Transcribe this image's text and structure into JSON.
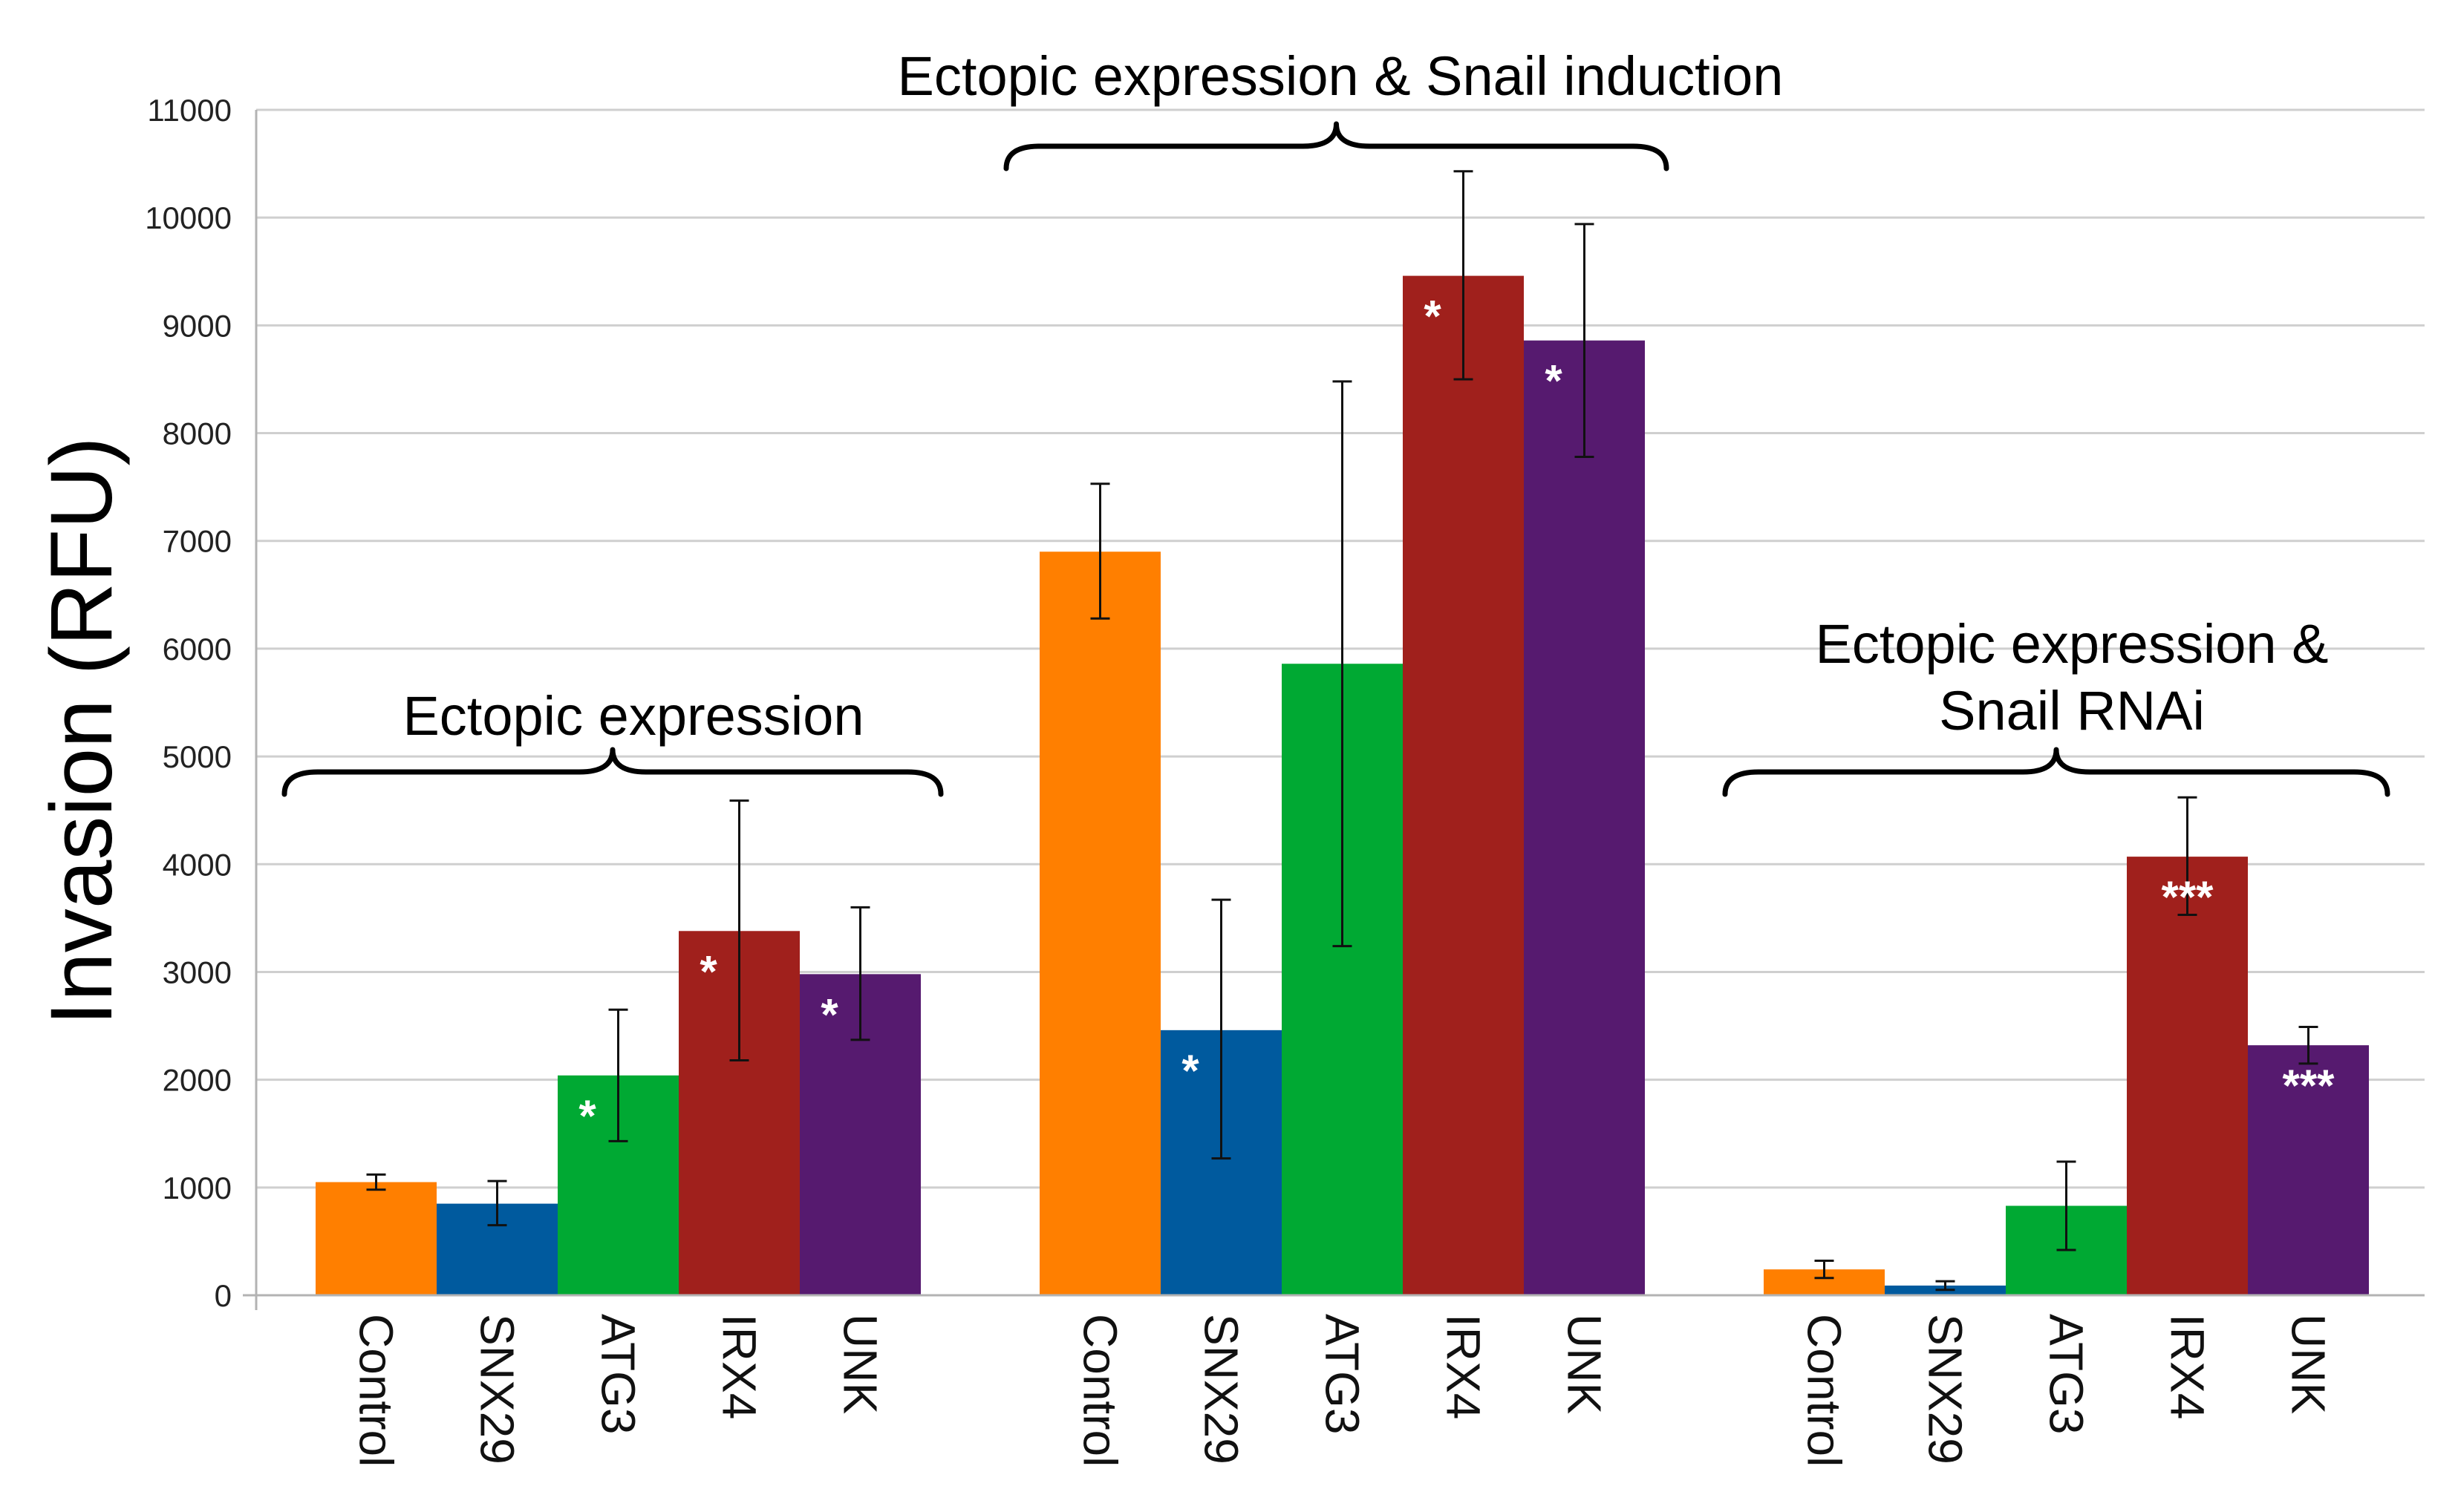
{
  "chart_data": {
    "type": "bar",
    "ylabel": "Invasion (RFU)",
    "ylim": [
      0,
      11000
    ],
    "yticks": [
      0,
      1000,
      2000,
      3000,
      4000,
      5000,
      6000,
      7000,
      8000,
      9000,
      10000,
      11000
    ],
    "grid": true,
    "categories": [
      "Control",
      "SNX29",
      "ATG3",
      "IRX4",
      "UNK"
    ],
    "colors": {
      "Control": "#ff7f00",
      "SNX29": "#005a9e",
      "ATG3": "#00a933",
      "IRX4": "#a0201c",
      "UNK": "#561a6f"
    },
    "groups": [
      {
        "name": "Ectopic expression",
        "bars": [
          {
            "category": "Control",
            "value": 1050,
            "error": [
              980,
              1120
            ],
            "sig": ""
          },
          {
            "category": "SNX29",
            "value": 850,
            "error": [
              650,
              1060
            ],
            "sig": ""
          },
          {
            "category": "ATG3",
            "value": 2040,
            "error": [
              1430,
              2650
            ],
            "sig": "*"
          },
          {
            "category": "IRX4",
            "value": 3380,
            "error": [
              2180,
              4590
            ],
            "sig": "*"
          },
          {
            "category": "UNK",
            "value": 2980,
            "error": [
              2370,
              3600
            ],
            "sig": "*"
          }
        ]
      },
      {
        "name": "Ectopic expression & Snail induction",
        "bars": [
          {
            "category": "Control",
            "value": 6900,
            "error": [
              6280,
              7530
            ],
            "sig": ""
          },
          {
            "category": "SNX29",
            "value": 2460,
            "error": [
              1270,
              3670
            ],
            "sig": "*"
          },
          {
            "category": "ATG3",
            "value": 5860,
            "error": [
              3240,
              8480
            ],
            "sig": ""
          },
          {
            "category": "IRX4",
            "value": 9460,
            "error": [
              8500,
              10430
            ],
            "sig": "*"
          },
          {
            "category": "UNK",
            "value": 8860,
            "error": [
              7780,
              9940
            ],
            "sig": "*"
          }
        ]
      },
      {
        "name": "Ectopic expression & Snail RNAi",
        "name_lines": [
          "Ectopic expression &",
          "Snail RNAi"
        ],
        "bars": [
          {
            "category": "Control",
            "value": 240,
            "error": [
              160,
              320
            ],
            "sig": ""
          },
          {
            "category": "SNX29",
            "value": 90,
            "error": [
              50,
              130
            ],
            "sig": ""
          },
          {
            "category": "ATG3",
            "value": 830,
            "error": [
              420,
              1240
            ],
            "sig": ""
          },
          {
            "category": "IRX4",
            "value": 4070,
            "error": [
              3530,
              4620
            ],
            "sig": "***"
          },
          {
            "category": "UNK",
            "value": 2320,
            "error": [
              2150,
              2490
            ],
            "sig": "***"
          }
        ]
      }
    ]
  }
}
